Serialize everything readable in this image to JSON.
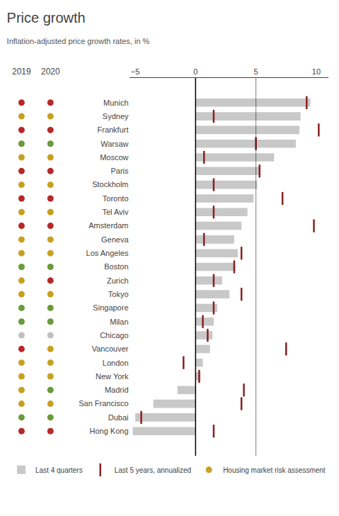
{
  "chart_data": {
    "type": "bar",
    "orientation": "horizontal",
    "title": "Price growth",
    "subtitle": "Inflation-adjusted price growth rates, in %",
    "categories": [
      "Munich",
      "Sydney",
      "Frankfurt",
      "Warsaw",
      "Moscow",
      "Paris",
      "Stockholm",
      "Toronto",
      "Tel Aviv",
      "Amsterdam",
      "Geneva",
      "Los Angeles",
      "Boston",
      "Zurich",
      "Tokyo",
      "Singapore",
      "Milan",
      "Chicago",
      "Vancouver",
      "London",
      "New York",
      "Madrid",
      "San Francisco",
      "Dubai",
      "Hong Kong"
    ],
    "series": [
      {
        "name": "Last 4 quarters",
        "type": "bar",
        "color": "#c8c8c8",
        "values": [
          9.5,
          8.7,
          8.6,
          8.3,
          6.5,
          5.3,
          5.1,
          4.8,
          4.3,
          3.8,
          3.2,
          3.5,
          3.3,
          2.2,
          2.8,
          1.8,
          1.5,
          1.4,
          1.2,
          0.6,
          0.4,
          -1.5,
          -3.5,
          -5.0,
          -5.2
        ]
      },
      {
        "name": "Last 5 years, annualized",
        "type": "scatter",
        "marker": "line",
        "color": "#8b2020",
        "values": [
          9.2,
          1.5,
          10.2,
          5.0,
          0.7,
          5.3,
          1.5,
          7.2,
          1.5,
          9.8,
          0.7,
          3.8,
          3.2,
          1.5,
          3.8,
          1.5,
          0.6,
          1.0,
          7.5,
          -1.0,
          0.3,
          4.0,
          3.8,
          -4.5,
          1.5
        ]
      }
    ],
    "risk_assessment": {
      "name": "Housing market risk assessment",
      "color": "#c8a020",
      "columns": [
        {
          "label": "2019",
          "colors": [
            "#b5292a",
            "#c8a020",
            "#b5292a",
            "#6a9a3a",
            "#c8a020",
            "#b5292a",
            "#c8a020",
            "#b5292a",
            "#c8a020",
            "#b5292a",
            "#c8a020",
            "#c8a020",
            "#6a9a3a",
            "#c8a020",
            "#c8a020",
            "#6a9a3a",
            "#6a9a3a",
            "#c0c0c0",
            "#b5292a",
            "#c8a020",
            "#c8a020",
            "#c8a020",
            "#c8a020",
            "#6a9a3a",
            "#b5292a"
          ]
        },
        {
          "label": "2020",
          "colors": [
            "#b5292a",
            "#c8a020",
            "#b5292a",
            "#6a9a3a",
            "#c8a020",
            "#b5292a",
            "#c8a020",
            "#b5292a",
            "#c8a020",
            "#b5292a",
            "#c8a020",
            "#c8a020",
            "#6a9a3a",
            "#b5292a",
            "#c8a020",
            "#6a9a3a",
            "#6a9a3a",
            "#c0c0c0",
            "#c8a020",
            "#c8a020",
            "#c8a020",
            "#6a9a3a",
            "#c8a020",
            "#6a9a3a",
            "#b5292a"
          ]
        }
      ]
    },
    "vlines": [
      0,
      5
    ],
    "xlim": [
      -5.5,
      11.0
    ],
    "xticks": [
      {
        "value": -5,
        "label": "−5"
      },
      0,
      5,
      10
    ],
    "grid": false,
    "legend": "bottom"
  }
}
